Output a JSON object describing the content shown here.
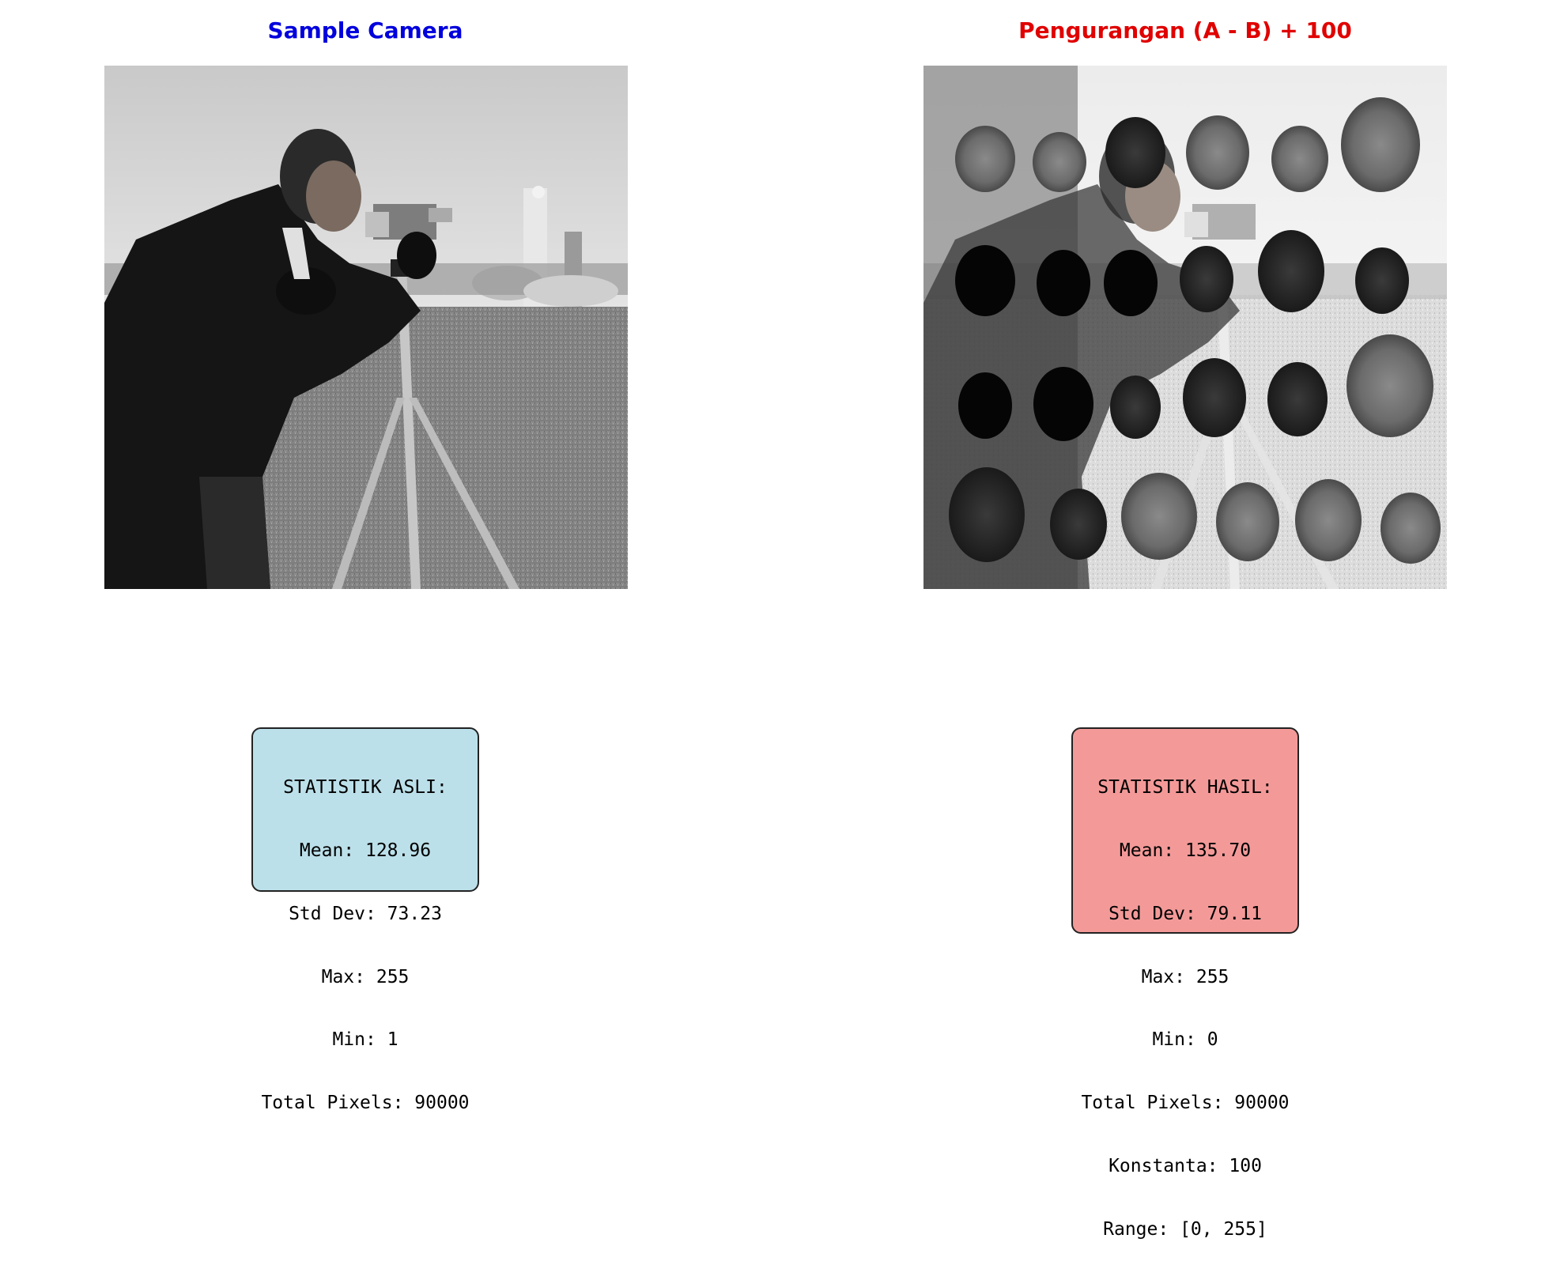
{
  "left_panel": {
    "title": "Sample Camera",
    "title_color": "#0000dd",
    "image_subject": "cameraman grayscale photo",
    "stats": {
      "heading": "STATISTIK ASLI:",
      "mean": "Mean: 128.96",
      "std": "Std Dev: 73.23",
      "max": "Max: 255",
      "min": "Min: 1",
      "total": "Total Pixels: 90000"
    },
    "box_color": "#bce0ea"
  },
  "right_panel": {
    "title": "Pengurangan (A - B) + 100",
    "title_color": "#e00000",
    "image_subject": "cameraman minus coins image plus constant",
    "stats": {
      "heading": "STATISTIK HASIL:",
      "mean": "Mean: 135.70",
      "std": "Std Dev: 79.11",
      "max": "Max: 255",
      "min": "Min: 0",
      "total": "Total Pixels: 90000",
      "constant": "Konstanta: 100",
      "range": "Range: [0, 255]"
    },
    "box_color": "#f39a99"
  }
}
